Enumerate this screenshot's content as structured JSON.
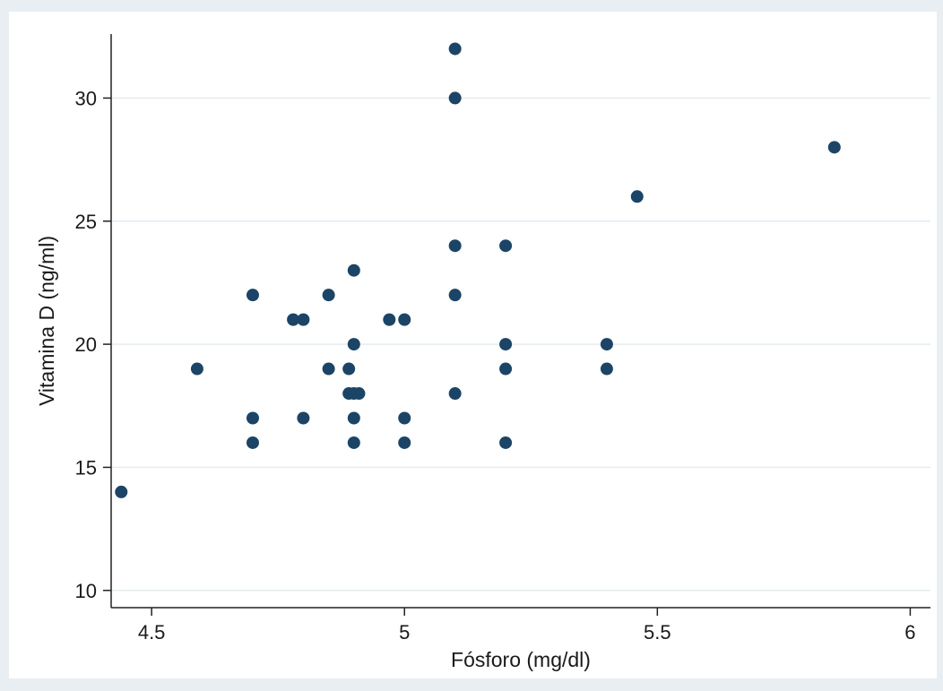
{
  "chart_data": {
    "type": "scatter",
    "title": "",
    "xlabel": "Fósforo (mg/dl)",
    "ylabel": "Vitamina D (ng/ml)",
    "xlim": [
      4.42,
      6.04
    ],
    "ylim": [
      9.3,
      32.6
    ],
    "x_ticks": [
      4.5,
      5,
      5.5,
      6
    ],
    "x_tick_labels": [
      "4.5",
      "5",
      "5.5",
      "6"
    ],
    "y_ticks": [
      10,
      15,
      20,
      25,
      30
    ],
    "y_tick_labels": [
      "10",
      "15",
      "20",
      "25",
      "30"
    ],
    "grid": "horizontal",
    "legend": "none",
    "colors": {
      "outer_background": "#e9eef2",
      "plot_background": "#ffffff",
      "gridline": "#e6ebef",
      "axis": "#222222",
      "marker": "#1c4466"
    },
    "points": [
      {
        "x": 4.44,
        "y": 14
      },
      {
        "x": 4.59,
        "y": 19
      },
      {
        "x": 4.7,
        "y": 22
      },
      {
        "x": 4.7,
        "y": 17
      },
      {
        "x": 4.7,
        "y": 16
      },
      {
        "x": 4.78,
        "y": 21
      },
      {
        "x": 4.8,
        "y": 21
      },
      {
        "x": 4.8,
        "y": 17
      },
      {
        "x": 4.85,
        "y": 22
      },
      {
        "x": 4.85,
        "y": 19
      },
      {
        "x": 4.89,
        "y": 19
      },
      {
        "x": 4.89,
        "y": 18
      },
      {
        "x": 4.9,
        "y": 23
      },
      {
        "x": 4.9,
        "y": 20
      },
      {
        "x": 4.9,
        "y": 18
      },
      {
        "x": 4.91,
        "y": 18
      },
      {
        "x": 4.9,
        "y": 17
      },
      {
        "x": 4.9,
        "y": 16
      },
      {
        "x": 4.97,
        "y": 21
      },
      {
        "x": 5.0,
        "y": 21
      },
      {
        "x": 5.0,
        "y": 17
      },
      {
        "x": 5.0,
        "y": 16
      },
      {
        "x": 5.1,
        "y": 32
      },
      {
        "x": 5.1,
        "y": 30
      },
      {
        "x": 5.1,
        "y": 24
      },
      {
        "x": 5.1,
        "y": 22
      },
      {
        "x": 5.1,
        "y": 18
      },
      {
        "x": 5.2,
        "y": 24
      },
      {
        "x": 5.2,
        "y": 20
      },
      {
        "x": 5.2,
        "y": 19
      },
      {
        "x": 5.2,
        "y": 16
      },
      {
        "x": 5.4,
        "y": 20
      },
      {
        "x": 5.4,
        "y": 19
      },
      {
        "x": 5.46,
        "y": 26
      },
      {
        "x": 5.85,
        "y": 28
      }
    ]
  }
}
